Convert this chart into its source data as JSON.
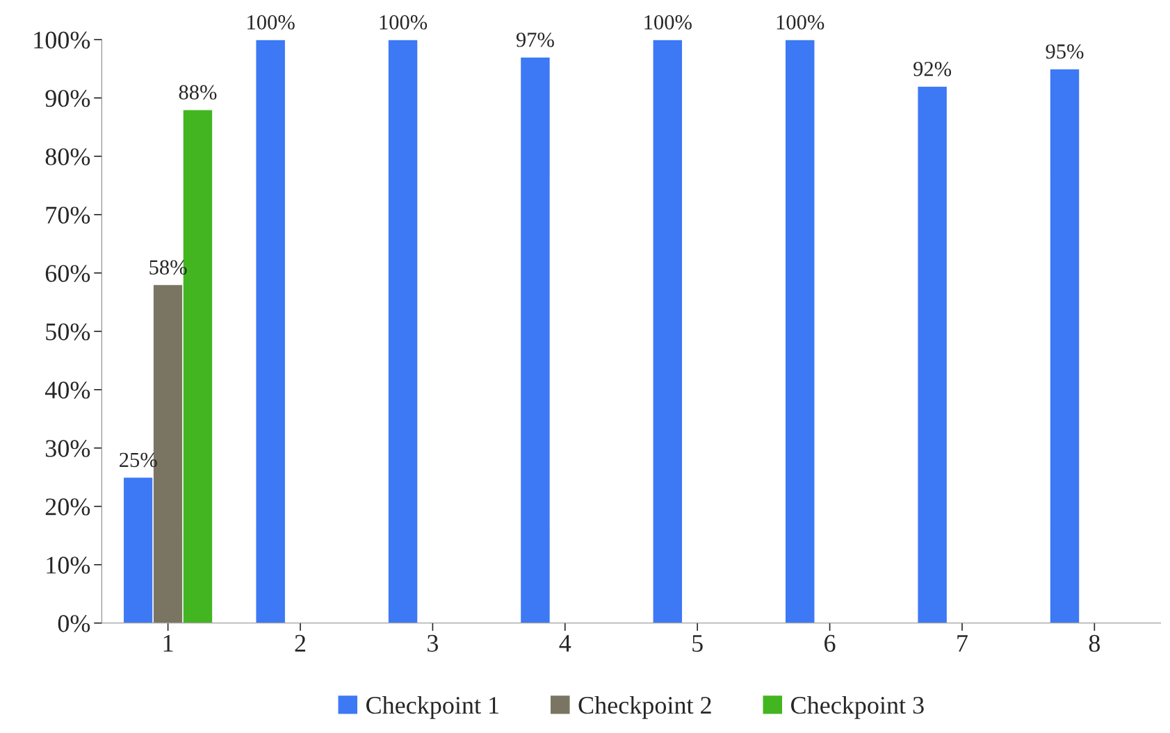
{
  "chart_data": {
    "type": "bar",
    "categories": [
      "1",
      "2",
      "3",
      "4",
      "5",
      "6",
      "7",
      "8"
    ],
    "series": [
      {
        "name": "Checkpoint 1",
        "color": "#3d78f5",
        "values": [
          25,
          100,
          100,
          97,
          100,
          100,
          92,
          95
        ],
        "value_labels": [
          "25%",
          "100%",
          "100%",
          "97%",
          "100%",
          "100%",
          "92%",
          "95%"
        ]
      },
      {
        "name": "Checkpoint 2",
        "color": "#7a7462",
        "values": [
          58,
          null,
          null,
          null,
          null,
          null,
          null,
          null
        ],
        "value_labels": [
          "58%",
          null,
          null,
          null,
          null,
          null,
          null,
          null
        ]
      },
      {
        "name": "Checkpoint 3",
        "color": "#43b520",
        "values": [
          88,
          null,
          null,
          null,
          null,
          null,
          null,
          null
        ],
        "value_labels": [
          "88%",
          null,
          null,
          null,
          null,
          null,
          null,
          null
        ]
      }
    ],
    "ylim": [
      0,
      100
    ],
    "yticks": [
      {
        "value": 0,
        "label": "0%"
      },
      {
        "value": 10,
        "label": "10%"
      },
      {
        "value": 20,
        "label": "20%"
      },
      {
        "value": 30,
        "label": "30%"
      },
      {
        "value": 40,
        "label": "40%"
      },
      {
        "value": 50,
        "label": "50%"
      },
      {
        "value": 60,
        "label": "60%"
      },
      {
        "value": 70,
        "label": "70%"
      },
      {
        "value": 80,
        "label": "80%"
      },
      {
        "value": 90,
        "label": "90%"
      },
      {
        "value": 100,
        "label": "100%"
      }
    ],
    "grid": false,
    "legend": "bottom"
  }
}
